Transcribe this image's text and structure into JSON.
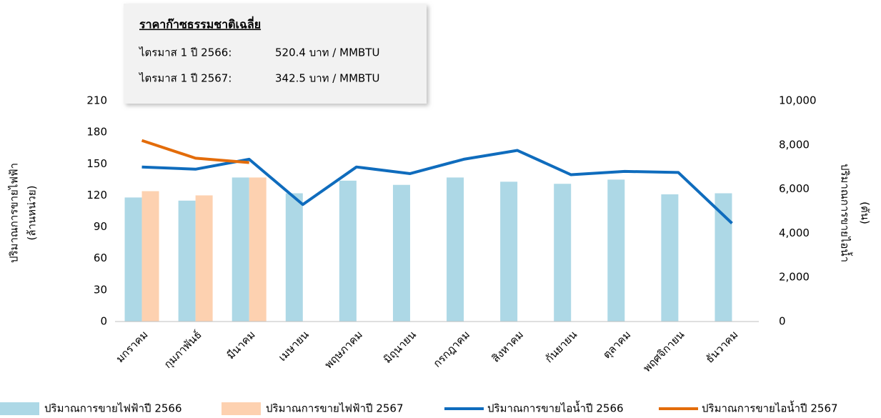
{
  "chart_data": {
    "type": "bar_line",
    "info_box": {
      "title": "ราคาก๊าซธรรมชาติเฉลี่ย",
      "rows": [
        [
          "ไตรมาส 1 ปี 2566:",
          "520.4 บาท / MMBTU"
        ],
        [
          "ไตรมาส 1 ปี 2567:",
          "342.5 บาท / MMBTU"
        ]
      ]
    },
    "ylabel": [
      "ปริมาณการขายไฟฟ้า",
      "(ล้านหน่วย)"
    ],
    "y2label": [
      "ปริมาณการขายไอน้ำ",
      "(ตัน)"
    ],
    "categories": [
      "มกราคม",
      "กุมภาพันธ์",
      "มีนาคม",
      "เมษายน",
      "พฤษภาคม",
      "มิถุนายน",
      "กรกฎาคม",
      "สิงหาคม",
      "กันยายน",
      "ตุลาคม",
      "พฤศจิกายน",
      "ธันวาคม"
    ],
    "ylim": [
      0,
      210
    ],
    "yticks": [
      0,
      30,
      60,
      90,
      120,
      150,
      180,
      210
    ],
    "y2lim": [
      0,
      10000
    ],
    "y2ticks": [
      0,
      {
        "value": 2000,
        "label": "2,000"
      },
      {
        "value": 4000,
        "label": "4,000"
      },
      {
        "value": 6000,
        "label": "6,000"
      },
      {
        "value": 8000,
        "label": "8,000"
      },
      {
        "value": 10000,
        "label": "10,000"
      }
    ],
    "series": [
      {
        "name": "ปริมาณการขายไฟฟ้าปี 2566",
        "kind": "bar",
        "color": "#add8e6",
        "values": [
          118,
          115,
          137,
          122,
          134,
          130,
          137,
          133,
          131,
          135,
          121,
          122
        ]
      },
      {
        "name": "ปริมาณการขายไฟฟ้าปี 2567",
        "kind": "bar",
        "color": "#fdd1b0",
        "values": [
          124,
          120,
          137,
          null,
          null,
          null,
          null,
          null,
          null,
          null,
          null,
          null
        ]
      },
      {
        "name": "ปริมาณการขายไอน้ำปี 2566",
        "kind": "line",
        "axis": "y2",
        "color": "#0f6cbd",
        "values": [
          7000,
          6900,
          7350,
          5300,
          7000,
          6700,
          7350,
          7750,
          6650,
          6800,
          6750,
          4450
        ]
      },
      {
        "name": "ปริมาณการขายไอน้ำปี 2567",
        "kind": "line",
        "axis": "y2",
        "color": "#e36c0a",
        "values": [
          8200,
          7400,
          7200,
          null,
          null,
          null,
          null,
          null,
          null,
          null,
          null,
          null
        ]
      }
    ]
  }
}
